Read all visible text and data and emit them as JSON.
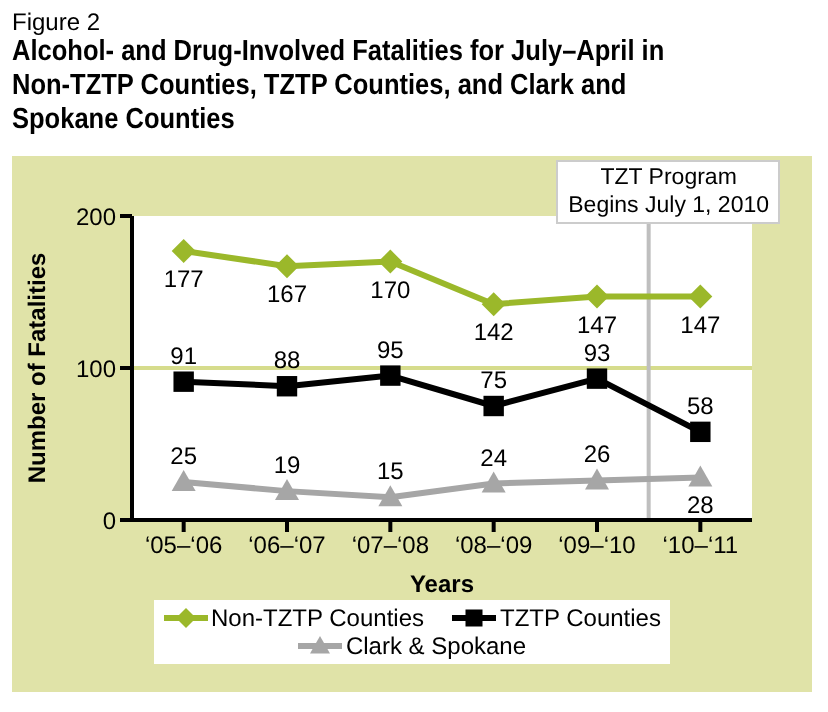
{
  "chart_data": {
    "type": "line",
    "subtitle": "Figure 2",
    "title": "Alcohol- and Drug-Involved Fatalities for July–April in Non-TZTP Counties, TZTP Counties, and Clark and Spokane Counties",
    "categories": [
      "‘05–‘06",
      "‘06–‘07",
      "‘07–‘08",
      "‘08–‘09",
      "‘09–‘10",
      "‘10–‘11"
    ],
    "series": [
      {
        "name": "Non-TZTP Counties",
        "color": "#9bb82a",
        "marker": "diamond",
        "values": [
          177,
          167,
          170,
          142,
          147,
          147
        ]
      },
      {
        "name": "TZTP Counties",
        "color": "#000000",
        "marker": "square",
        "values": [
          91,
          88,
          95,
          75,
          93,
          58
        ]
      },
      {
        "name": "Clark & Spokane",
        "color": "#a6a6a6",
        "marker": "triangle",
        "values": [
          25,
          19,
          15,
          24,
          26,
          28
        ]
      }
    ],
    "xlabel": "Years",
    "ylabel": "Number of Fatalities",
    "ylim": [
      0,
      200
    ],
    "yticks": [
      0,
      100,
      200
    ],
    "legend": "bottom",
    "data_labels": true,
    "ref_lines": [
      {
        "axis": "y",
        "value": 100,
        "color": "#d6dc8c"
      },
      {
        "axis": "x",
        "value": "‘10–‘11",
        "label": "TZT Program Begins July 1, 2010",
        "color": "#bfbfbf"
      }
    ]
  }
}
